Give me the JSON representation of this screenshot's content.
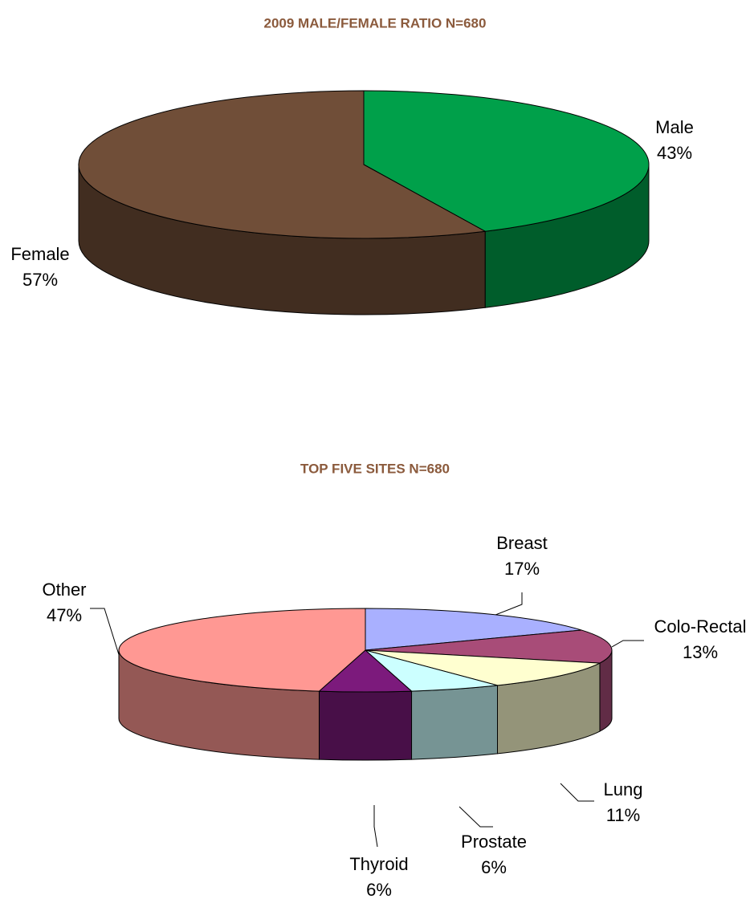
{
  "chart_data": [
    {
      "type": "pie3d",
      "title": "2009 MALE/FEMALE RATIO N=680",
      "categories": [
        "Male",
        "Female"
      ],
      "values": [
        43,
        57
      ],
      "value_labels": [
        "43%",
        "57%"
      ],
      "colors": [
        "#00a04a",
        "#704e38"
      ]
    },
    {
      "type": "pie3d",
      "title": "TOP FIVE SITES  N=680",
      "categories": [
        "Breast",
        "Colo-Rectal",
        "Lung",
        "Prostate",
        "Thyroid",
        "Other"
      ],
      "values": [
        17,
        13,
        11,
        6,
        6,
        47
      ],
      "value_labels": [
        "17%",
        "13%",
        "11%",
        "6%",
        "6%",
        "47%"
      ],
      "colors": [
        "#a9b0ff",
        "#a84c78",
        "#ffffd0",
        "#ccffff",
        "#7c1a7c",
        "#ff9893"
      ]
    }
  ]
}
